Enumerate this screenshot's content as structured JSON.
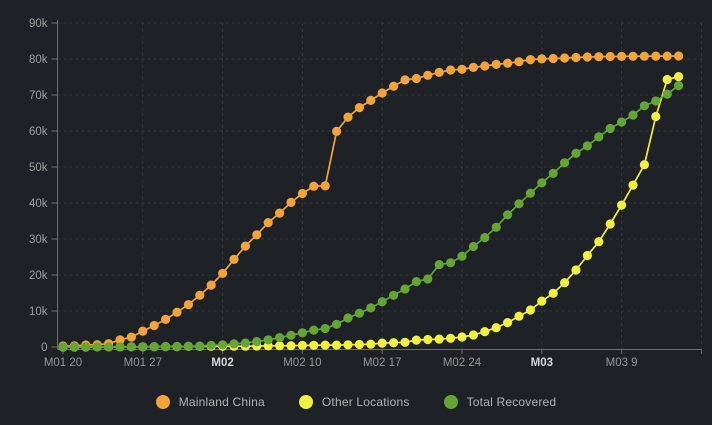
{
  "colors": {
    "background": "#1e2227",
    "axis": "#6e6e6e",
    "grid": "rgba(255,255,255,0.10)",
    "x_label": "#979797",
    "x_label_bold": "#d6d6d6",
    "y_label": "#9e9e9e",
    "mainland_china": "#F2A43C",
    "other_locations": "#F1EF3F",
    "total_recovered": "#64A536"
  },
  "chart_data": {
    "type": "line",
    "title": "",
    "xlabel": "",
    "ylabel": "",
    "ylim": [
      0,
      90000
    ],
    "grid": "dashed",
    "legend_position": "bottom",
    "x": [
      "01-20",
      "01-21",
      "01-22",
      "01-23",
      "01-24",
      "01-25",
      "01-26",
      "01-27",
      "01-28",
      "01-29",
      "01-30",
      "01-31",
      "02-01",
      "02-02",
      "02-03",
      "02-04",
      "02-05",
      "02-06",
      "02-07",
      "02-08",
      "02-09",
      "02-10",
      "02-11",
      "02-12",
      "02-13",
      "02-14",
      "02-15",
      "02-16",
      "02-17",
      "02-18",
      "02-19",
      "02-20",
      "02-21",
      "02-22",
      "02-23",
      "02-24",
      "02-25",
      "02-26",
      "02-27",
      "02-28",
      "02-29",
      "03-01",
      "03-02",
      "03-03",
      "03-04",
      "03-05",
      "03-06",
      "03-07",
      "03-08",
      "03-09",
      "03-10",
      "03-11",
      "03-12",
      "03-13",
      "03-14"
    ],
    "x_ticks": [
      {
        "day": 0,
        "label": "M01 20",
        "bold": false
      },
      {
        "day": 7,
        "label": "M01 27",
        "bold": false
      },
      {
        "day": 14,
        "label": "M02",
        "bold": true
      },
      {
        "day": 21,
        "label": "M02 10",
        "bold": false
      },
      {
        "day": 28,
        "label": "M02 17",
        "bold": false
      },
      {
        "day": 35,
        "label": "M02 24",
        "bold": false
      },
      {
        "day": 42,
        "label": "M03",
        "bold": true
      },
      {
        "day": 49,
        "label": "M03 9",
        "bold": false
      }
    ],
    "y_ticks": [
      {
        "value": 0,
        "label": "0"
      },
      {
        "value": 10000,
        "label": "10k"
      },
      {
        "value": 20000,
        "label": "20k"
      },
      {
        "value": 30000,
        "label": "30k"
      },
      {
        "value": 40000,
        "label": "40k"
      },
      {
        "value": 50000,
        "label": "50k"
      },
      {
        "value": 60000,
        "label": "60k"
      },
      {
        "value": 70000,
        "label": "70k"
      },
      {
        "value": 80000,
        "label": "80k"
      },
      {
        "value": 90000,
        "label": "90k"
      }
    ],
    "series": [
      {
        "name": "Mainland China",
        "color": "#F2A43C",
        "values": [
          278,
          326,
          547,
          639,
          916,
          1979,
          2737,
          4409,
          5970,
          7678,
          9658,
          11791,
          14380,
          17205,
          20438,
          24324,
          28018,
          31161,
          34546,
          37198,
          40171,
          42638,
          44653,
          44759,
          59895,
          63851,
          66492,
          68500,
          70548,
          72436,
          74185,
          74576,
          75465,
          76288,
          76936,
          77150,
          77658,
          78064,
          78497,
          78824,
          79251,
          79824,
          80026,
          80151,
          80271,
          80409,
          80552,
          80651,
          80695,
          80735,
          80757,
          80778,
          80793,
          80813,
          80824
        ]
      },
      {
        "name": "Other Locations",
        "color": "#F1EF3F",
        "values": [
          4,
          6,
          8,
          14,
          25,
          40,
          56,
          64,
          87,
          105,
          118,
          153,
          173,
          183,
          188,
          212,
          227,
          265,
          317,
          343,
          361,
          457,
          476,
          523,
          538,
          603,
          683,
          769,
          1073,
          1200,
          1304,
          1930,
          2084,
          2181,
          2430,
          2764,
          3323,
          4288,
          5359,
          6767,
          8555,
          10288,
          12754,
          14905,
          17872,
          21396,
          25406,
          29256,
          34175,
          39416,
          44980,
          50633,
          64016,
          74300,
          75100
        ]
      },
      {
        "name": "Total Recovered",
        "color": "#64A536",
        "values": [
          28,
          30,
          28,
          30,
          36,
          39,
          52,
          61,
          107,
          126,
          143,
          222,
          284,
          472,
          623,
          852,
          1124,
          1487,
          2011,
          2616,
          3244,
          3946,
          4683,
          5150,
          6295,
          8058,
          9395,
          10865,
          12583,
          14352,
          16121,
          18177,
          18890,
          22886,
          23394,
          25227,
          27905,
          30384,
          33277,
          36711,
          39782,
          42716,
          45602,
          48228,
          51170,
          53796,
          55865,
          58358,
          60694,
          62494,
          64404,
          67003,
          68324,
          70251,
          72624
        ]
      }
    ]
  }
}
